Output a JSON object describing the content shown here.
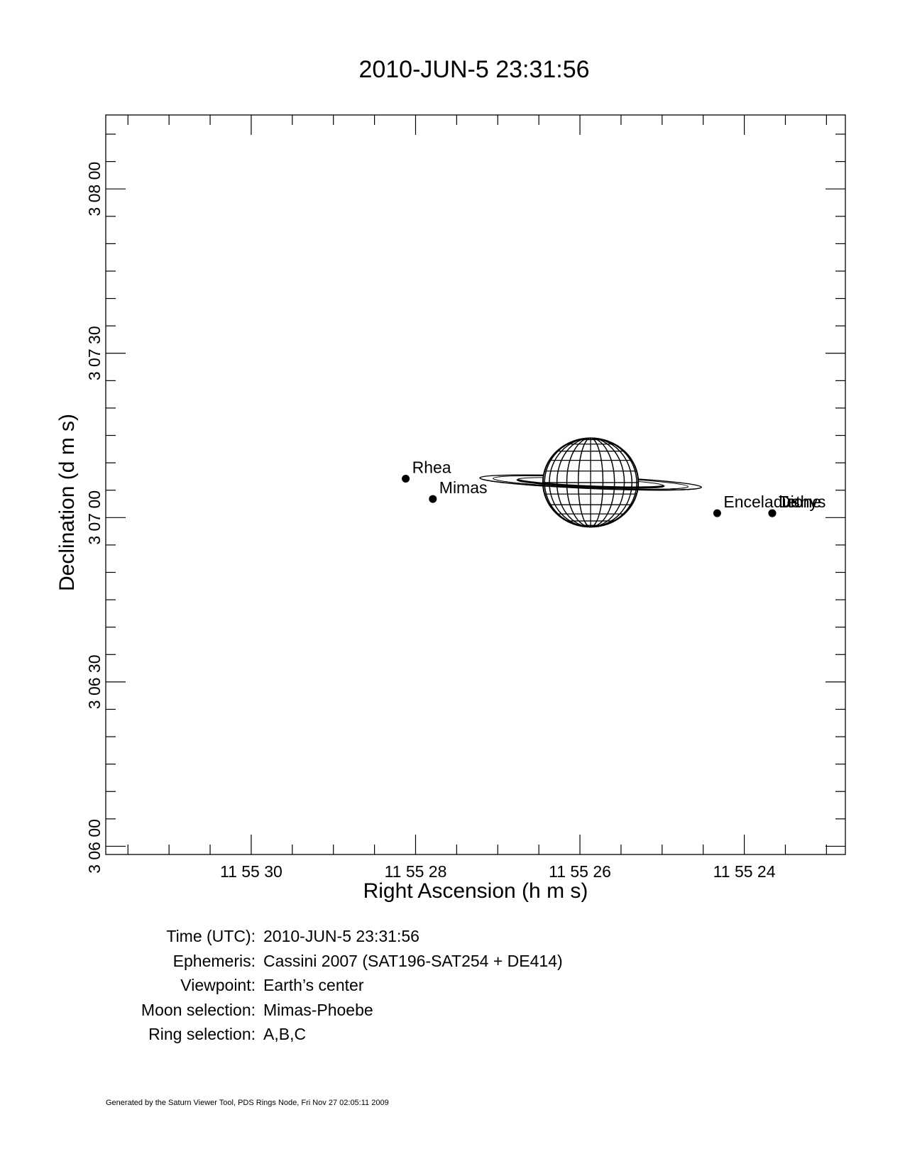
{
  "chart_data": {
    "type": "scatter",
    "title": "2010-JUN-5 23:31:56",
    "xlabel": "Right Ascension (h m s)",
    "ylabel": "Declination (d m s)",
    "x_unit": "seconds of RA offset from 11h 55m 00s",
    "y_unit": "arcseconds of Dec offset from +3d 06m 00s",
    "xlim": [
      31.77,
      22.77
    ],
    "ylim": [
      -1.5,
      133.5
    ],
    "x_axis_reversed": true,
    "x_ticks": [
      {
        "value": 30,
        "label": "11 55 30"
      },
      {
        "value": 28,
        "label": "11 55 28"
      },
      {
        "value": 26,
        "label": "11 55 26"
      },
      {
        "value": 24,
        "label": "11 55 24"
      }
    ],
    "y_ticks": [
      {
        "value": 0,
        "label": "3 06 00"
      },
      {
        "value": 30,
        "label": "3 06 30"
      },
      {
        "value": 60,
        "label": "3 07 00"
      },
      {
        "value": 90,
        "label": "3 07 30"
      },
      {
        "value": 120,
        "label": "3 08 00"
      }
    ],
    "grid": false,
    "planet": {
      "name": "Saturn",
      "ra_s": 25.87,
      "dec_s": 66.4,
      "radius_ra_s": 0.58,
      "radius_dec_s": 8.1,
      "ring_outer_ra_s": 1.35,
      "ring_outer_dec_s": 1.1,
      "ring_tilt_deg": 2.4
    },
    "points": [
      {
        "name": "Rhea",
        "ra_s": 28.12,
        "dec_s": 67.1
      },
      {
        "name": "Mimas",
        "ra_s": 27.79,
        "dec_s": 63.4
      },
      {
        "name": "Enceladus",
        "ra_s": 24.33,
        "dec_s": 60.8
      },
      {
        "name": "Tethys",
        "ra_s": 23.66,
        "dec_s": 60.8
      },
      {
        "name": "Dione",
        "ra_s": 23.66,
        "dec_s": 60.8
      }
    ]
  },
  "info": [
    {
      "label": "Time (UTC):",
      "value": "2010-JUN-5 23:31:56"
    },
    {
      "label": "Ephemeris:",
      "value": "Cassini 2007 (SAT196-SAT254 + DE414)"
    },
    {
      "label": "Viewpoint:",
      "value": "Earth’s center"
    },
    {
      "label": "Moon selection:",
      "value": "Mimas-Phoebe"
    },
    {
      "label": "Ring selection:",
      "value": "A,B,C"
    }
  ],
  "footer": "Generated by the Saturn Viewer Tool, PDS Rings Node, Fri Nov 27 02:05:11 2009"
}
